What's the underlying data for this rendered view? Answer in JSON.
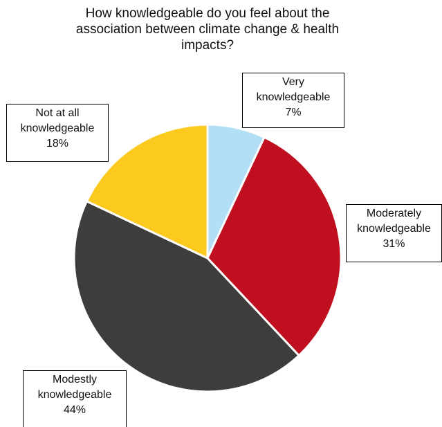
{
  "chart_data": {
    "type": "pie",
    "title_lines": [
      "How knowledgeable do you feel about the",
      "association between climate change & health",
      "impacts?"
    ],
    "slices": [
      {
        "label_lines": [
          "Very",
          "knowledgeable"
        ],
        "value": 7,
        "value_label": "7%",
        "color": "#b2dff5"
      },
      {
        "label_lines": [
          "Moderately",
          "knowledgeable"
        ],
        "value": 31,
        "value_label": "31%",
        "color": "#c0101f"
      },
      {
        "label_lines": [
          "Modestly",
          "knowledgeable"
        ],
        "value": 44,
        "value_label": "44%",
        "color": "#3d3d3b"
      },
      {
        "label_lines": [
          "Not at all",
          "knowledgeable"
        ],
        "value": 18,
        "value_label": "18%",
        "color": "#fcc91f"
      }
    ],
    "start": "12 o'clock",
    "direction": "clockwise",
    "legend": "none"
  }
}
